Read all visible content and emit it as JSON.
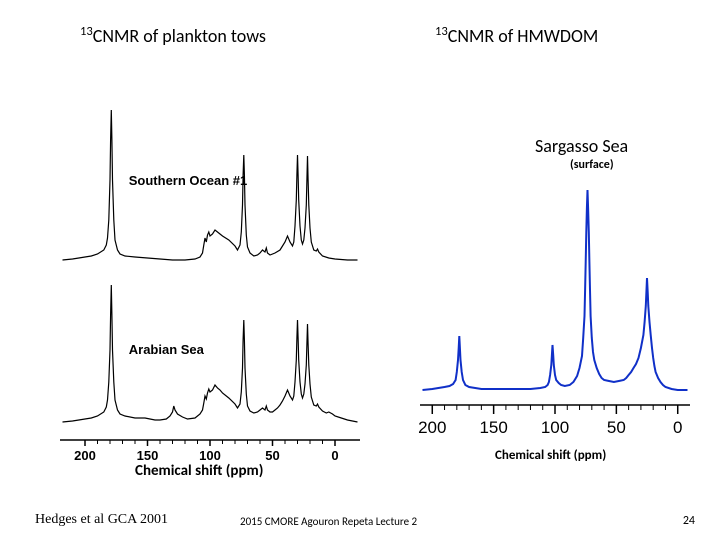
{
  "titles": {
    "left": "CNMR of plankton tows",
    "left_sup": "13",
    "right": "CNMR of HMWDOM",
    "right_sup": "13"
  },
  "sargasso": {
    "main": "Sargasso Sea",
    "sub": "(surface)"
  },
  "left_chart": {
    "type": "line",
    "xaxis_label": "Chemical shift (ppm)",
    "xlim": [
      220,
      -20
    ],
    "xticks": [
      200,
      150,
      100,
      50,
      0
    ],
    "line_color": "#000000",
    "line_width": 1.2,
    "background_color": "#ffffff",
    "series": [
      {
        "label": "Southern Ocean #1",
        "label_pos": {
          "x": 165,
          "y_offset": -35
        },
        "baseline_y": 200,
        "points": [
          [
            218,
            200
          ],
          [
            210,
            199
          ],
          [
            205,
            198
          ],
          [
            200,
            197
          ],
          [
            195,
            196
          ],
          [
            190,
            194
          ],
          [
            185,
            190
          ],
          [
            183,
            185
          ],
          [
            182,
            178
          ],
          [
            181,
            160
          ],
          [
            180,
            120
          ],
          [
            179.5,
            80
          ],
          [
            179,
            50
          ],
          [
            178.5,
            80
          ],
          [
            178,
            120
          ],
          [
            177,
            160
          ],
          [
            176,
            180
          ],
          [
            174,
            190
          ],
          [
            172,
            194
          ],
          [
            168,
            196
          ],
          [
            160,
            197
          ],
          [
            150,
            198
          ],
          [
            140,
            199
          ],
          [
            130,
            200
          ],
          [
            120,
            200
          ],
          [
            112,
            199
          ],
          [
            108,
            197
          ],
          [
            106,
            193
          ],
          [
            105,
            185
          ],
          [
            104,
            178
          ],
          [
            103,
            182
          ],
          [
            102,
            175
          ],
          [
            101,
            172
          ],
          [
            100,
            176
          ],
          [
            98,
            174
          ],
          [
            96,
            170
          ],
          [
            94,
            172
          ],
          [
            92,
            174
          ],
          [
            90,
            176
          ],
          [
            85,
            180
          ],
          [
            80,
            186
          ],
          [
            78,
            190
          ],
          [
            76,
            185
          ],
          [
            75,
            172
          ],
          [
            74,
            145
          ],
          [
            73.5,
            115
          ],
          [
            73,
            95
          ],
          [
            72.5,
            115
          ],
          [
            72,
            145
          ],
          [
            71,
            175
          ],
          [
            70,
            187
          ],
          [
            68,
            193
          ],
          [
            65,
            196
          ],
          [
            62,
            195
          ],
          [
            60,
            193
          ],
          [
            58,
            190
          ],
          [
            56,
            192
          ],
          [
            55,
            188
          ],
          [
            54,
            193
          ],
          [
            52,
            195
          ],
          [
            48,
            193
          ],
          [
            44,
            190
          ],
          [
            42,
            186
          ],
          [
            40,
            182
          ],
          [
            38,
            176
          ],
          [
            36,
            182
          ],
          [
            34,
            186
          ],
          [
            33,
            182
          ],
          [
            32,
            166
          ],
          [
            31,
            140
          ],
          [
            30.5,
            115
          ],
          [
            30,
            95
          ],
          [
            29.5,
            115
          ],
          [
            29,
            140
          ],
          [
            28,
            166
          ],
          [
            27,
            180
          ],
          [
            26,
            184
          ],
          [
            25,
            180
          ],
          [
            24,
            168
          ],
          [
            23,
            145
          ],
          [
            22.5,
            120
          ],
          [
            22,
            96
          ],
          [
            21.5,
            120
          ],
          [
            21,
            145
          ],
          [
            20,
            168
          ],
          [
            19,
            182
          ],
          [
            17,
            190
          ],
          [
            15,
            191
          ],
          [
            14,
            189
          ],
          [
            13,
            192
          ],
          [
            10,
            196
          ],
          [
            5,
            198
          ],
          [
            0,
            199
          ],
          [
            -10,
            200
          ],
          [
            -18,
            200
          ]
        ]
      },
      {
        "label": "Arabian Sea",
        "label_pos": {
          "x": 165,
          "y_offset": -28
        },
        "baseline_y": 362,
        "points": [
          [
            218,
            362
          ],
          [
            210,
            361
          ],
          [
            205,
            360
          ],
          [
            200,
            359
          ],
          [
            195,
            358
          ],
          [
            190,
            356
          ],
          [
            185,
            352
          ],
          [
            183,
            347
          ],
          [
            182,
            340
          ],
          [
            181,
            322
          ],
          [
            180,
            290
          ],
          [
            179.5,
            255
          ],
          [
            179,
            225
          ],
          [
            178.5,
            255
          ],
          [
            178,
            290
          ],
          [
            177,
            322
          ],
          [
            176,
            340
          ],
          [
            174,
            350
          ],
          [
            172,
            354
          ],
          [
            168,
            356
          ],
          [
            160,
            358
          ],
          [
            152,
            358
          ],
          [
            148,
            359
          ],
          [
            144,
            360
          ],
          [
            140,
            360
          ],
          [
            135,
            359
          ],
          [
            132,
            356
          ],
          [
            130,
            352
          ],
          [
            129,
            346
          ],
          [
            128,
            350
          ],
          [
            126,
            354
          ],
          [
            122,
            357
          ],
          [
            118,
            359
          ],
          [
            112,
            358
          ],
          [
            108,
            354
          ],
          [
            106,
            350
          ],
          [
            105,
            343
          ],
          [
            104,
            336
          ],
          [
            103,
            339
          ],
          [
            102,
            333
          ],
          [
            101,
            329
          ],
          [
            100,
            332
          ],
          [
            98,
            330
          ],
          [
            96,
            325
          ],
          [
            94,
            328
          ],
          [
            92,
            330
          ],
          [
            90,
            333
          ],
          [
            85,
            338
          ],
          [
            80,
            344
          ],
          [
            78,
            348
          ],
          [
            76,
            344
          ],
          [
            75,
            332
          ],
          [
            74,
            308
          ],
          [
            73.5,
            280
          ],
          [
            73,
            260
          ],
          [
            72.5,
            280
          ],
          [
            72,
            308
          ],
          [
            71,
            334
          ],
          [
            70,
            346
          ],
          [
            68,
            351
          ],
          [
            65,
            353
          ],
          [
            62,
            352
          ],
          [
            60,
            350
          ],
          [
            58,
            348
          ],
          [
            56,
            350
          ],
          [
            55,
            346
          ],
          [
            54,
            350
          ],
          [
            52,
            352
          ],
          [
            50,
            352
          ],
          [
            48,
            350
          ],
          [
            46,
            348
          ],
          [
            44,
            345
          ],
          [
            42,
            341
          ],
          [
            40,
            336
          ],
          [
            38,
            330
          ],
          [
            36,
            336
          ],
          [
            34,
            340
          ],
          [
            33,
            336
          ],
          [
            32,
            322
          ],
          [
            31,
            300
          ],
          [
            30.5,
            278
          ],
          [
            30,
            260
          ],
          [
            29.5,
            278
          ],
          [
            29,
            300
          ],
          [
            28,
            322
          ],
          [
            27,
            334
          ],
          [
            26,
            338
          ],
          [
            25,
            334
          ],
          [
            24,
            324
          ],
          [
            23,
            305
          ],
          [
            22.5,
            284
          ],
          [
            22,
            264
          ],
          [
            21.5,
            284
          ],
          [
            21,
            305
          ],
          [
            20,
            324
          ],
          [
            19,
            337
          ],
          [
            17,
            345
          ],
          [
            15,
            346
          ],
          [
            14,
            344
          ],
          [
            13,
            347
          ],
          [
            10,
            351
          ],
          [
            7,
            353
          ],
          [
            5,
            352
          ],
          [
            2,
            354
          ],
          [
            0,
            356
          ],
          [
            -5,
            358
          ],
          [
            -10,
            360
          ],
          [
            -18,
            362
          ]
        ]
      }
    ]
  },
  "right_chart": {
    "type": "line",
    "xaxis_label": "Chemical shift (ppm)",
    "xlim": [
      210,
      -10
    ],
    "xticks": [
      200,
      150,
      100,
      50,
      0
    ],
    "line_color": "#1030c8",
    "line_width": 2.0,
    "axis_color": "#000000",
    "background_color": "#ffffff",
    "series": [
      {
        "baseline_y": 210,
        "points": [
          [
            208,
            210
          ],
          [
            200,
            209
          ],
          [
            195,
            208
          ],
          [
            190,
            207
          ],
          [
            186,
            206
          ],
          [
            183,
            204
          ],
          [
            181,
            200
          ],
          [
            180,
            192
          ],
          [
            179,
            180
          ],
          [
            178.5,
            168
          ],
          [
            178,
            156
          ],
          [
            177.5,
            168
          ],
          [
            177,
            180
          ],
          [
            176,
            192
          ],
          [
            175,
            200
          ],
          [
            173,
            205
          ],
          [
            170,
            207
          ],
          [
            165,
            208
          ],
          [
            160,
            209
          ],
          [
            150,
            209
          ],
          [
            140,
            209
          ],
          [
            130,
            209
          ],
          [
            120,
            209
          ],
          [
            112,
            208
          ],
          [
            108,
            207
          ],
          [
            106,
            205
          ],
          [
            105,
            202
          ],
          [
            104,
            195
          ],
          [
            103,
            185
          ],
          [
            102.5,
            175
          ],
          [
            102,
            165
          ],
          [
            101.5,
            175
          ],
          [
            101,
            185
          ],
          [
            100,
            195
          ],
          [
            99,
            200
          ],
          [
            97,
            203
          ],
          [
            95,
            205
          ],
          [
            92,
            206
          ],
          [
            88,
            205
          ],
          [
            85,
            202
          ],
          [
            82,
            196
          ],
          [
            80,
            188
          ],
          [
            78,
            176
          ],
          [
            77,
            158
          ],
          [
            76,
            136
          ],
          [
            75.5,
            110
          ],
          [
            75,
            82
          ],
          [
            74.5,
            52
          ],
          [
            74,
            28
          ],
          [
            73.5,
            10
          ],
          [
            73,
            28
          ],
          [
            72.5,
            52
          ],
          [
            72,
            82
          ],
          [
            71.5,
            110
          ],
          [
            71,
            136
          ],
          [
            70,
            158
          ],
          [
            69,
            172
          ],
          [
            68,
            180
          ],
          [
            66,
            188
          ],
          [
            64,
            194
          ],
          [
            62,
            198
          ],
          [
            60,
            200
          ],
          [
            56,
            201
          ],
          [
            52,
            202
          ],
          [
            48,
            201
          ],
          [
            44,
            200
          ],
          [
            42,
            198
          ],
          [
            40,
            195
          ],
          [
            38,
            192
          ],
          [
            36,
            188
          ],
          [
            34,
            184
          ],
          [
            32,
            178
          ],
          [
            30,
            168
          ],
          [
            28,
            155
          ],
          [
            27,
            142
          ],
          [
            26,
            126
          ],
          [
            25.5,
            112
          ],
          [
            25,
            98
          ],
          [
            24.5,
            112
          ],
          [
            24,
            126
          ],
          [
            23,
            142
          ],
          [
            22,
            155
          ],
          [
            21,
            168
          ],
          [
            20,
            178
          ],
          [
            19,
            186
          ],
          [
            18,
            192
          ],
          [
            16,
            198
          ],
          [
            14,
            202
          ],
          [
            12,
            205
          ],
          [
            10,
            207
          ],
          [
            5,
            209
          ],
          [
            0,
            210
          ],
          [
            -8,
            210
          ]
        ]
      }
    ]
  },
  "citation": "Hedges et al GCA 2001",
  "footer": "2015 CMORE Agouron Repeta Lecture 2",
  "slide_num": "24"
}
